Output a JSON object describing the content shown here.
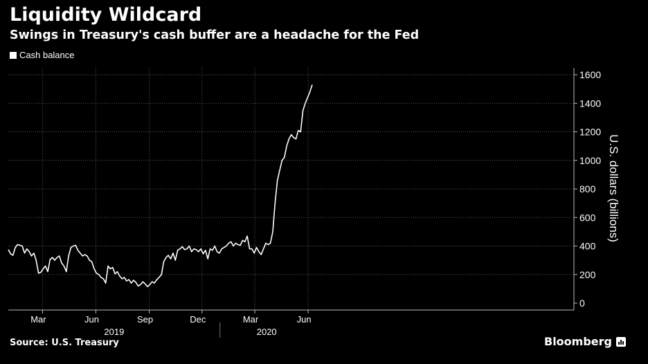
{
  "chart_data": {
    "type": "line",
    "title": "Liquidity Wildcard",
    "subtitle": "Swings in Treasury's cash buffer are a headache for the Fed",
    "ylabel": "U.S. dollars (billions)",
    "ylim": [
      0,
      1600
    ],
    "yticks": [
      0,
      200,
      400,
      600,
      800,
      1000,
      1200,
      1400,
      1600
    ],
    "grid": true,
    "legend_position": "top-left",
    "x_month_ticks": [
      {
        "label": "Mar",
        "date": "2019-03-01"
      },
      {
        "label": "Jun",
        "date": "2019-06-01"
      },
      {
        "label": "Sep",
        "date": "2019-09-01"
      },
      {
        "label": "Dec",
        "date": "2019-12-01"
      },
      {
        "label": "Mar",
        "date": "2020-03-01"
      },
      {
        "label": "Jun",
        "date": "2020-06-01"
      }
    ],
    "x_year_labels": [
      {
        "label": "2019",
        "from": "2019-01-01",
        "to": "2020-01-01"
      },
      {
        "label": "2020",
        "from": "2020-01-01",
        "to": "2020-06-10"
      }
    ],
    "series": [
      {
        "name": "Cash balance",
        "color": "#ffffff",
        "x": [
          "2019-01-01",
          "2019-01-05",
          "2019-01-09",
          "2019-01-13",
          "2019-01-17",
          "2019-01-21",
          "2019-01-25",
          "2019-01-29",
          "2019-02-02",
          "2019-02-06",
          "2019-02-10",
          "2019-02-14",
          "2019-02-18",
          "2019-02-22",
          "2019-02-26",
          "2019-03-02",
          "2019-03-06",
          "2019-03-10",
          "2019-03-14",
          "2019-03-18",
          "2019-03-22",
          "2019-03-26",
          "2019-03-30",
          "2019-04-03",
          "2019-04-07",
          "2019-04-11",
          "2019-04-15",
          "2019-04-19",
          "2019-04-23",
          "2019-04-27",
          "2019-05-01",
          "2019-05-05",
          "2019-05-09",
          "2019-05-13",
          "2019-05-17",
          "2019-05-21",
          "2019-05-25",
          "2019-05-29",
          "2019-06-02",
          "2019-06-06",
          "2019-06-10",
          "2019-06-14",
          "2019-06-18",
          "2019-06-22",
          "2019-06-26",
          "2019-06-30",
          "2019-07-04",
          "2019-07-08",
          "2019-07-12",
          "2019-07-16",
          "2019-07-20",
          "2019-07-24",
          "2019-07-28",
          "2019-08-01",
          "2019-08-05",
          "2019-08-09",
          "2019-08-13",
          "2019-08-17",
          "2019-08-21",
          "2019-08-25",
          "2019-08-29",
          "2019-09-02",
          "2019-09-06",
          "2019-09-10",
          "2019-09-14",
          "2019-09-18",
          "2019-09-22",
          "2019-09-26",
          "2019-09-30",
          "2019-10-04",
          "2019-10-08",
          "2019-10-12",
          "2019-10-16",
          "2019-10-20",
          "2019-10-24",
          "2019-10-28",
          "2019-11-01",
          "2019-11-05",
          "2019-11-09",
          "2019-11-13",
          "2019-11-17",
          "2019-11-21",
          "2019-11-25",
          "2019-11-29",
          "2019-12-03",
          "2019-12-07",
          "2019-12-11",
          "2019-12-15",
          "2019-12-19",
          "2019-12-23",
          "2019-12-27",
          "2019-12-31",
          "2020-01-04",
          "2020-01-08",
          "2020-01-12",
          "2020-01-16",
          "2020-01-20",
          "2020-01-24",
          "2020-01-28",
          "2020-02-01",
          "2020-02-05",
          "2020-02-09",
          "2020-02-13",
          "2020-02-17",
          "2020-02-21",
          "2020-02-25",
          "2020-02-29",
          "2020-03-04",
          "2020-03-08",
          "2020-03-12",
          "2020-03-16",
          "2020-03-20",
          "2020-03-24",
          "2020-03-28",
          "2020-04-01",
          "2020-04-05",
          "2020-04-09",
          "2020-04-13",
          "2020-04-17",
          "2020-04-21",
          "2020-04-25",
          "2020-04-29",
          "2020-05-03",
          "2020-05-07",
          "2020-05-11",
          "2020-05-15",
          "2020-05-19",
          "2020-05-23",
          "2020-05-27",
          "2020-05-31",
          "2020-06-04",
          "2020-06-08"
        ],
        "values": [
          375,
          345,
          335,
          390,
          410,
          405,
          400,
          350,
          380,
          360,
          330,
          350,
          300,
          210,
          215,
          240,
          260,
          220,
          305,
          320,
          300,
          320,
          330,
          280,
          260,
          220,
          330,
          390,
          400,
          405,
          370,
          350,
          330,
          340,
          330,
          300,
          290,
          240,
          210,
          200,
          180,
          170,
          140,
          260,
          240,
          250,
          205,
          220,
          190,
          170,
          180,
          155,
          165,
          140,
          160,
          145,
          120,
          130,
          150,
          135,
          115,
          130,
          150,
          140,
          165,
          180,
          200,
          290,
          320,
          335,
          310,
          350,
          300,
          370,
          380,
          395,
          375,
          380,
          400,
          360,
          380,
          375,
          360,
          380,
          345,
          370,
          310,
          380,
          370,
          400,
          360,
          350,
          380,
          390,
          400,
          420,
          430,
          400,
          420,
          410,
          405,
          440,
          430,
          470,
          380,
          380,
          350,
          390,
          360,
          340,
          380,
          420,
          410,
          420,
          500,
          700,
          860,
          930,
          1000,
          1020,
          1100,
          1150,
          1180,
          1160,
          1150,
          1210,
          1200,
          1350,
          1400,
          1440,
          1480,
          1530
        ]
      }
    ]
  },
  "footer": {
    "source": "Source: U.S. Treasury",
    "brand": "Bloomberg"
  }
}
